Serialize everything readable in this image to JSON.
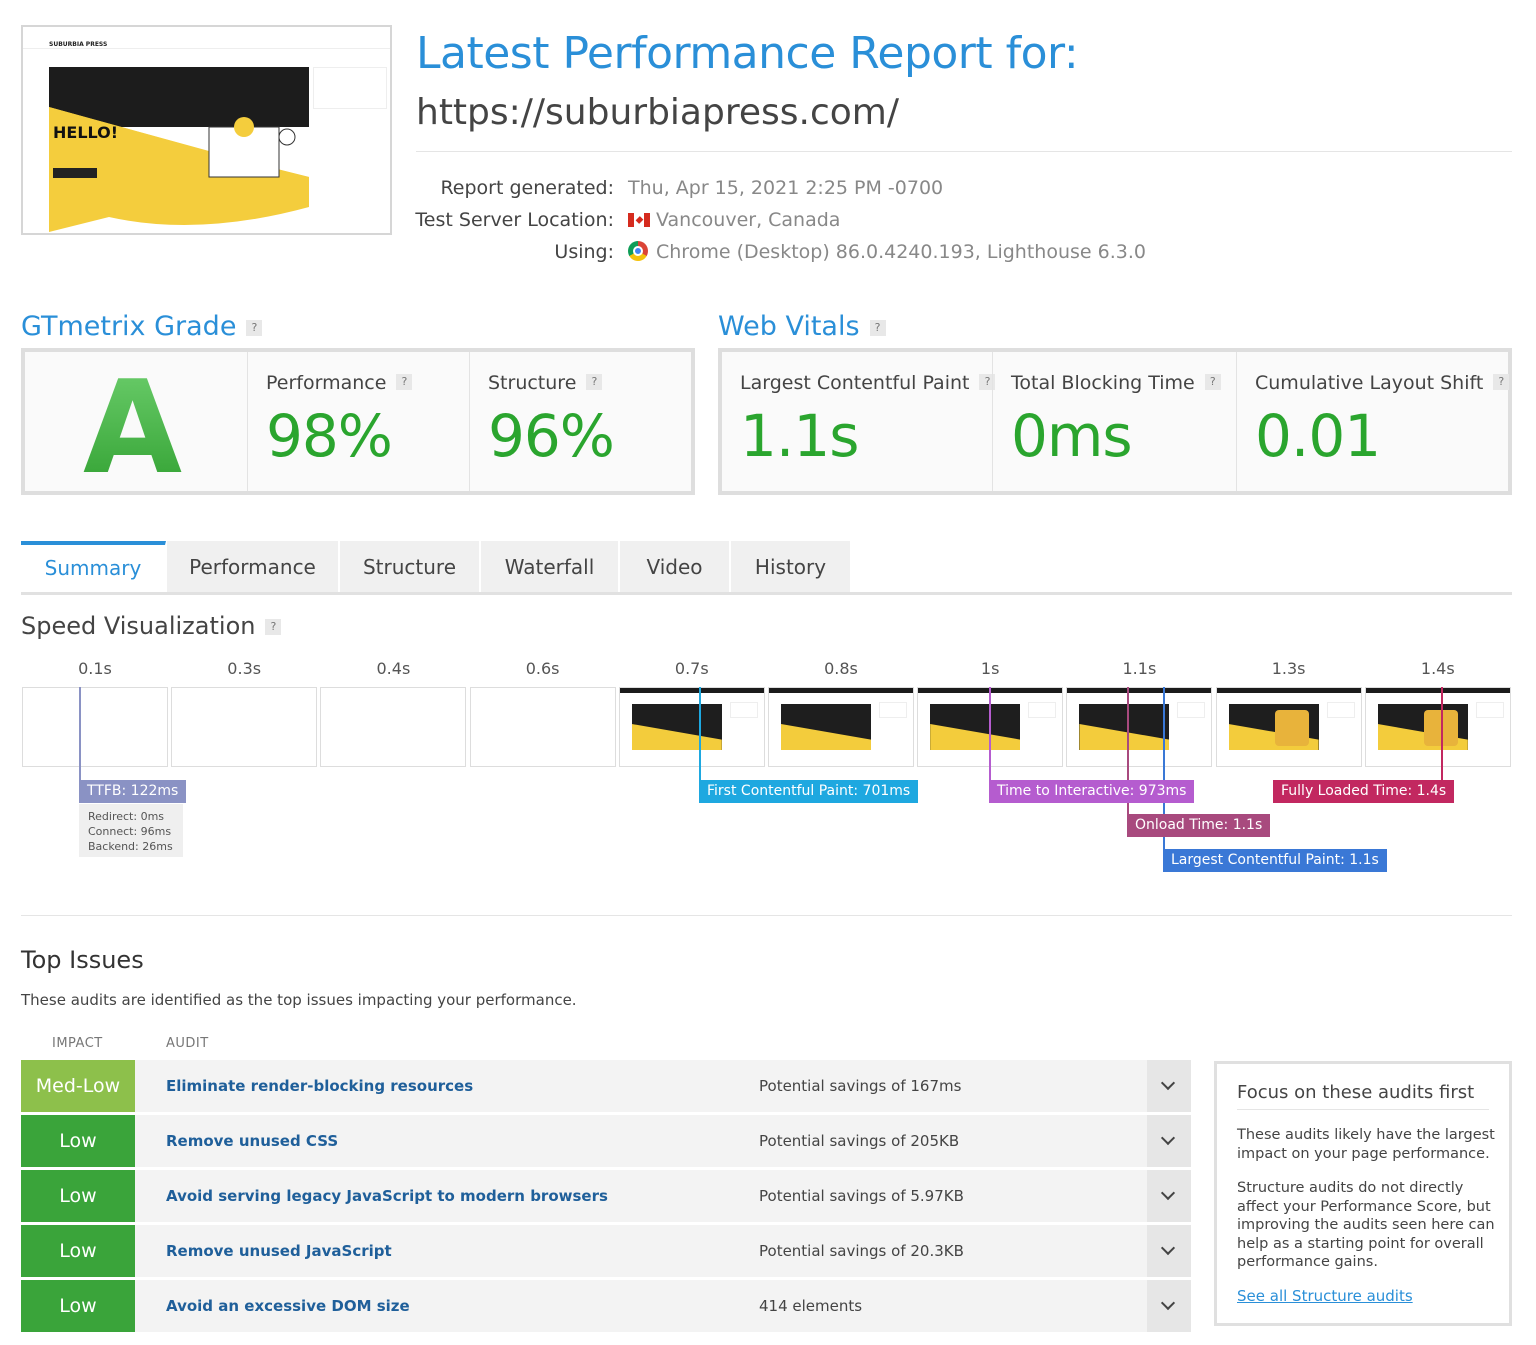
{
  "report": {
    "title": "Latest Performance Report for:",
    "url": "https://suburbiapress.com/",
    "meta": {
      "generated_label": "Report generated:",
      "generated_value": "Thu, Apr 15, 2021 2:25 PM -0700",
      "location_label": "Test Server Location:",
      "location_value": "Vancouver, Canada",
      "using_label": "Using:",
      "using_value": "Chrome (Desktop) 86.0.4240.193, Lighthouse 6.3.0"
    },
    "thumbnail": {
      "logo": "SUBURBIA PRESS",
      "hero_text": "HELLO!"
    }
  },
  "grade": {
    "heading": "GTmetrix Grade",
    "letter": "A",
    "performance_label": "Performance",
    "performance_value": "98%",
    "structure_label": "Structure",
    "structure_value": "96%"
  },
  "vitals": {
    "heading": "Web Vitals",
    "lcp_label": "Largest Contentful Paint",
    "lcp_value": "1.1s",
    "tbt_label": "Total Blocking Time",
    "tbt_value": "0ms",
    "cls_label": "Cumulative Layout Shift",
    "cls_value": "0.01"
  },
  "help_mark": "?",
  "tabs": [
    "Summary",
    "Performance",
    "Structure",
    "Waterfall",
    "Video",
    "History"
  ],
  "active_tab": "Summary",
  "speed": {
    "heading": "Speed Visualization",
    "ticks": [
      "0.1s",
      "0.3s",
      "0.4s",
      "0.6s",
      "0.7s",
      "0.8s",
      "1s",
      "1.1s",
      "1.3s",
      "1.4s"
    ],
    "markers": {
      "ttfb": "TTFB: 122ms",
      "redirect": "Redirect: 0ms",
      "connect": "Connect: 96ms",
      "backend": "Backend: 26ms",
      "fcp": "First Contentful Paint: 701ms",
      "tti": "Time to Interactive: 973ms",
      "onload": "Onload Time: 1.1s",
      "lcp": "Largest Contentful Paint: 1.1s",
      "fully": "Fully Loaded Time: 1.4s"
    },
    "colors": {
      "ttfb": "#8a92c4",
      "fcp": "#1ea8e0",
      "tti": "#b55ccf",
      "onload": "#a84a7e",
      "lcp": "#3a78d6",
      "fully": "#c22860"
    }
  },
  "issues": {
    "heading": "Top Issues",
    "description": "These audits are identified as the top issues impacting your performance.",
    "col_impact": "IMPACT",
    "col_audit": "AUDIT",
    "rows": [
      {
        "impact": "Med-Low",
        "audit": "Eliminate render-blocking resources",
        "savings": "Potential savings of 167ms"
      },
      {
        "impact": "Low",
        "audit": "Remove unused CSS",
        "savings": "Potential savings of 205KB"
      },
      {
        "impact": "Low",
        "audit": "Avoid serving legacy JavaScript to modern browsers",
        "savings": "Potential savings of 5.97KB"
      },
      {
        "impact": "Low",
        "audit": "Remove unused JavaScript",
        "savings": "Potential savings of 20.3KB"
      },
      {
        "impact": "Low",
        "audit": "Avoid an excessive DOM size",
        "savings": "414 elements"
      }
    ],
    "impact_colors": {
      "Med-Low": "#8dc04b",
      "Low": "#3aa43a"
    }
  },
  "focus": {
    "heading": "Focus on these audits first",
    "p1": "These audits likely have the largest impact on your page performance.",
    "p2": "Structure audits do not directly affect your Performance Score, but improving the audits seen here can help as a starting point for overall performance gains.",
    "link": "See all Structure audits"
  }
}
